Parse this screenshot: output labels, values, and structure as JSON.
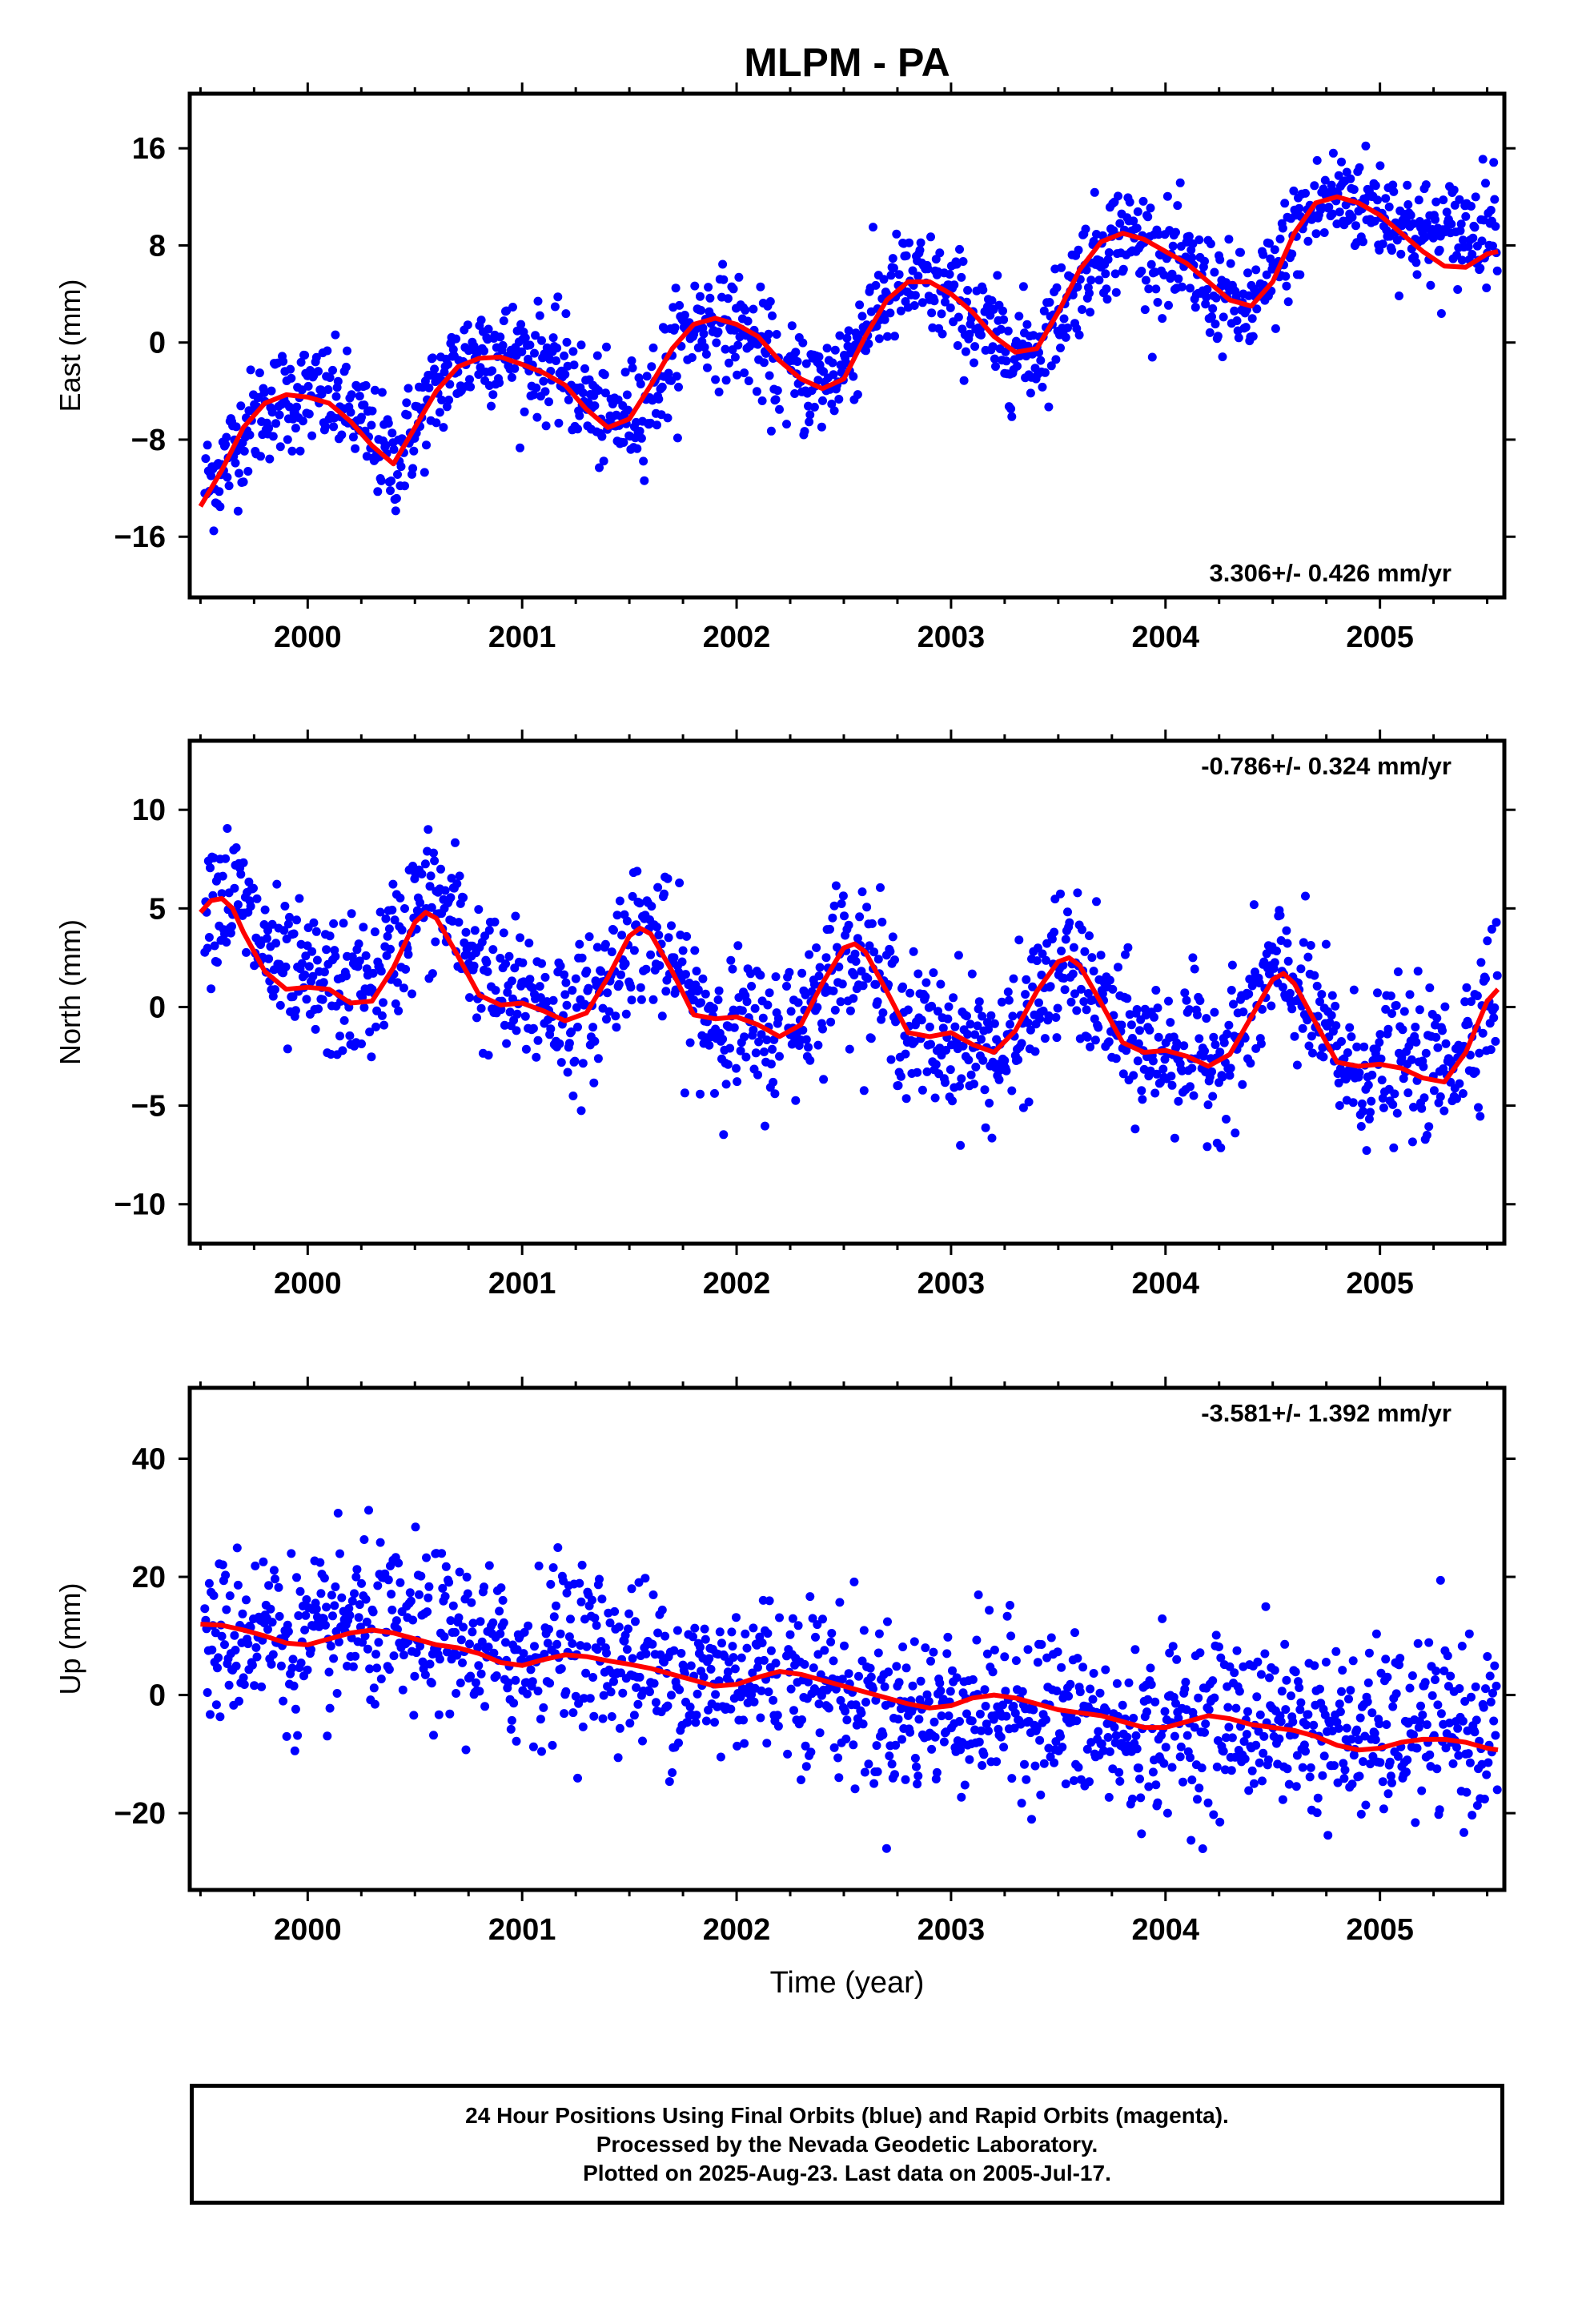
{
  "title": "MLPM - PA",
  "xlabel": "Time (year)",
  "x_tick_labels": [
    "2000",
    "2001",
    "2002",
    "2003",
    "2004",
    "2005"
  ],
  "colors": {
    "points": "#0000ff",
    "model": "#ff0000",
    "frame": "#000000"
  },
  "footer": {
    "line1": "24 Hour Positions Using Final Orbits (blue) and Rapid Orbits (magenta).",
    "line2": "Processed by the Nevada Geodetic Laboratory.",
    "line3": "Plotted on 2025-Aug-23. Last data on 2005-Jul-17."
  },
  "chart_data": [
    {
      "type": "scatter",
      "panel": "east",
      "ylabel": "East (mm)",
      "rate_label": "3.306+/- 0.426 mm/yr",
      "xlim": [
        1999.45,
        2005.58
      ],
      "ylim": [
        -21,
        20.5
      ],
      "yticks": [
        -16,
        -8,
        0,
        8,
        16
      ],
      "y_tick_labels": [
        "−16",
        "−8",
        "0",
        "8",
        "16"
      ],
      "rate": 3.306,
      "series": [
        {
          "kind": "points",
          "x": [
            1999.6,
            1999.8,
            2000.0,
            2000.2,
            2000.4,
            2000.6,
            2000.8,
            2001.0,
            2001.2,
            2001.4,
            2001.6,
            2001.8,
            2002.0,
            2002.2,
            2002.4,
            2002.6,
            2002.8,
            2003.0,
            2003.2,
            2003.4,
            2003.6,
            2003.8,
            2004.0,
            2004.2,
            2004.4,
            2004.6,
            2004.8,
            2005.0,
            2005.2,
            2005.4
          ],
          "y": [
            -10,
            -6,
            -4,
            -4,
            -10,
            -4,
            1,
            0,
            -1,
            -6,
            -6,
            2,
            1,
            -4,
            -3,
            3,
            5,
            3,
            0,
            -1,
            5,
            9,
            6,
            4,
            2,
            9,
            12,
            12,
            11,
            14
          ]
        },
        {
          "kind": "model",
          "x": [
            1999.5,
            1999.6,
            1999.7,
            1999.8,
            1999.9,
            2000.0,
            2000.1,
            2000.2,
            2000.3,
            2000.4,
            2000.5,
            2000.6,
            2000.7,
            2000.8,
            2000.9,
            2001.0,
            2001.1,
            2001.2,
            2001.3,
            2001.4,
            2001.5,
            2001.6,
            2001.7,
            2001.8,
            2001.9,
            2002.0,
            2002.1,
            2002.2,
            2002.3,
            2002.4,
            2002.5,
            2002.6,
            2002.7,
            2002.8,
            2002.9,
            2003.0,
            2003.1,
            2003.2,
            2003.3,
            2003.4,
            2003.5,
            2003.6,
            2003.7,
            2003.8,
            2003.9,
            2004.0,
            2004.1,
            2004.2,
            2004.3,
            2004.4,
            2004.5,
            2004.6,
            2004.7,
            2004.8,
            2004.9,
            2005.0,
            2005.1,
            2005.2,
            2005.3,
            2005.4,
            2005.5,
            2005.55
          ],
          "y": [
            -13.5,
            -10.5,
            -7,
            -5,
            -4.3,
            -4.5,
            -5,
            -6.5,
            -8.5,
            -10,
            -7,
            -4,
            -2,
            -1.3,
            -1.2,
            -1.8,
            -2.5,
            -3.5,
            -5.5,
            -7,
            -6.3,
            -3.5,
            -0.5,
            1.5,
            2,
            1.5,
            0.5,
            -1.5,
            -3,
            -3.8,
            -3,
            0.5,
            3.5,
            5,
            5,
            4,
            2.5,
            0.5,
            -0.8,
            -0.5,
            2.5,
            6,
            8.3,
            9,
            8.5,
            7.5,
            6.5,
            5,
            3.5,
            3,
            5,
            9,
            11.5,
            12,
            11.5,
            10.5,
            9,
            7.5,
            6.3,
            6.2,
            7.3,
            7.5
          ]
        }
      ]
    },
    {
      "type": "scatter",
      "panel": "north",
      "ylabel": "North (mm)",
      "rate_label": "-0.786+/- 0.324 mm/yr",
      "xlim": [
        1999.45,
        2005.58
      ],
      "ylim": [
        -12,
        13.5
      ],
      "yticks": [
        -10,
        -5,
        0,
        5,
        10
      ],
      "y_tick_labels": [
        "−10",
        "−5",
        "0",
        "5",
        "10"
      ],
      "rate": -0.786,
      "series": [
        {
          "kind": "points",
          "x": [
            1999.55,
            1999.7,
            1999.9,
            2000.1,
            2000.3,
            2000.5,
            2000.7,
            2000.9,
            2001.1,
            2001.3,
            2001.5,
            2001.7,
            2001.9,
            2002.1,
            2002.3,
            2002.5,
            2002.7,
            2002.9,
            2003.1,
            2003.3,
            2003.5,
            2003.7,
            2003.9,
            2004.1,
            2004.3,
            2004.5,
            2004.7,
            2004.9,
            2005.1,
            2005.3,
            2005.5
          ],
          "y": [
            6,
            7,
            2,
            1,
            2,
            6,
            7,
            1,
            1,
            -1,
            4,
            3,
            -1,
            -2,
            0,
            3,
            1,
            -2,
            -2,
            -3,
            2,
            0,
            -2,
            -2,
            -2,
            2,
            0,
            -4,
            -2,
            -2,
            1
          ]
        },
        {
          "kind": "model",
          "x": [
            1999.5,
            1999.55,
            1999.6,
            1999.65,
            1999.7,
            1999.8,
            1999.9,
            2000.0,
            2000.1,
            2000.2,
            2000.3,
            2000.4,
            2000.5,
            2000.55,
            2000.6,
            2000.7,
            2000.8,
            2000.9,
            2001.0,
            2001.1,
            2001.2,
            2001.3,
            2001.4,
            2001.5,
            2001.55,
            2001.6,
            2001.7,
            2001.8,
            2001.9,
            2002.0,
            2002.1,
            2002.2,
            2002.3,
            2002.4,
            2002.5,
            2002.55,
            2002.6,
            2002.7,
            2002.8,
            2002.9,
            2003.0,
            2003.1,
            2003.2,
            2003.3,
            2003.4,
            2003.5,
            2003.55,
            2003.6,
            2003.7,
            2003.8,
            2003.9,
            2004.0,
            2004.1,
            2004.2,
            2004.3,
            2004.4,
            2004.5,
            2004.55,
            2004.6,
            2004.7,
            2004.8,
            2004.9,
            2005.0,
            2005.1,
            2005.2,
            2005.3,
            2005.4,
            2005.5,
            2005.55
          ],
          "y": [
            4.8,
            5.4,
            5.5,
            5.0,
            3.8,
            1.8,
            0.9,
            1.0,
            0.9,
            0.2,
            0.3,
            2.0,
            4.3,
            4.8,
            4.5,
            2.6,
            0.6,
            0.1,
            0.2,
            -0.2,
            -0.7,
            -0.3,
            1.5,
            3.6,
            4.0,
            3.7,
            1.8,
            -0.4,
            -0.6,
            -0.5,
            -0.9,
            -1.5,
            -0.9,
            1.2,
            3.0,
            3.2,
            2.8,
            0.8,
            -1.3,
            -1.5,
            -1.3,
            -1.9,
            -2.3,
            -1.2,
            0.8,
            2.3,
            2.5,
            2.1,
            0.2,
            -1.8,
            -2.3,
            -2.2,
            -2.5,
            -3.0,
            -2.4,
            -0.5,
            1.4,
            1.7,
            1.2,
            -0.8,
            -2.8,
            -3.0,
            -2.9,
            -3.1,
            -3.6,
            -3.8,
            -2.3,
            0.3,
            0.9
          ]
        }
      ]
    },
    {
      "type": "scatter",
      "panel": "up",
      "ylabel": "Up (mm)",
      "rate_label": "-3.581+/- 1.392 mm/yr",
      "xlim": [
        1999.45,
        2005.58
      ],
      "ylim": [
        -33,
        52
      ],
      "yticks": [
        -20,
        0,
        20,
        40
      ],
      "y_tick_labels": [
        "−20",
        "0",
        "20",
        "40"
      ],
      "rate": -3.581,
      "series": [
        {
          "kind": "points",
          "x": [
            1999.6,
            1999.8,
            2000.0,
            2000.2,
            2000.4,
            2000.6,
            2000.8,
            2001.0,
            2001.2,
            2001.4,
            2001.6,
            2001.8,
            2002.0,
            2002.2,
            2002.4,
            2002.6,
            2002.8,
            2003.0,
            2003.2,
            2003.4,
            2003.6,
            2003.8,
            2004.0,
            2004.2,
            2004.4,
            2004.6,
            2004.8,
            2005.0,
            2005.2,
            2005.4
          ],
          "y": [
            5,
            15,
            5,
            15,
            10,
            12,
            10,
            5,
            15,
            8,
            5,
            2,
            6,
            5,
            2,
            -5,
            -5,
            -3,
            -6,
            -3,
            -8,
            -12,
            -5,
            -7,
            -2,
            -3,
            -5,
            -4,
            -3,
            -2
          ]
        },
        {
          "kind": "model",
          "x": [
            1999.5,
            1999.6,
            1999.7,
            1999.8,
            1999.9,
            2000.0,
            2000.1,
            2000.2,
            2000.3,
            2000.4,
            2000.5,
            2000.6,
            2000.7,
            2000.8,
            2000.9,
            2001.0,
            2001.1,
            2001.2,
            2001.3,
            2001.4,
            2001.5,
            2001.6,
            2001.7,
            2001.8,
            2001.9,
            2002.0,
            2002.1,
            2002.2,
            2002.3,
            2002.4,
            2002.5,
            2002.6,
            2002.7,
            2002.8,
            2002.9,
            2003.0,
            2003.1,
            2003.2,
            2003.3,
            2003.4,
            2003.5,
            2003.6,
            2003.7,
            2003.8,
            2003.9,
            2004.0,
            2004.1,
            2004.2,
            2004.3,
            2004.4,
            2004.5,
            2004.6,
            2004.7,
            2004.8,
            2004.9,
            2005.0,
            2005.1,
            2005.2,
            2005.3,
            2005.4,
            2005.5,
            2005.55
          ],
          "y": [
            12,
            11.8,
            11,
            10,
            8.8,
            8.5,
            9.5,
            10.5,
            11,
            10.5,
            9.5,
            8.5,
            8,
            7,
            5.5,
            5,
            6,
            6.8,
            6.5,
            5.8,
            5.2,
            4.5,
            3.5,
            2.5,
            1.5,
            1.8,
            3,
            4,
            3.5,
            2.5,
            1.5,
            0.5,
            -0.5,
            -1.5,
            -2.2,
            -1.8,
            -0.5,
            0,
            -0.5,
            -1.5,
            -2.5,
            -3,
            -3.5,
            -4.5,
            -5.5,
            -5.5,
            -4.5,
            -3.5,
            -4,
            -5,
            -5.5,
            -6,
            -7,
            -8.5,
            -9.3,
            -9,
            -8,
            -7.5,
            -7.5,
            -8,
            -9,
            -9.3
          ]
        }
      ]
    }
  ]
}
